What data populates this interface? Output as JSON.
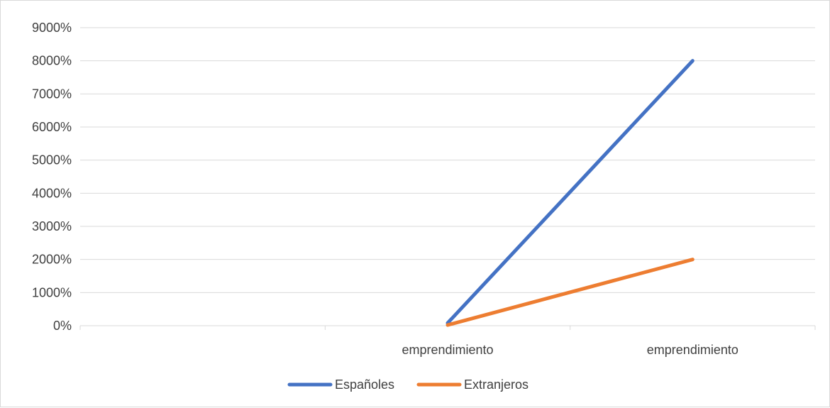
{
  "chart_data": {
    "type": "line",
    "title": "",
    "xlabel": "",
    "ylabel": "",
    "categories": [
      "",
      "emprendimiento",
      "emprendimiento"
    ],
    "ylim": [
      0,
      9000
    ],
    "y_ticks": [
      "0%",
      "1000%",
      "2000%",
      "3000%",
      "4000%",
      "5000%",
      "6000%",
      "7000%",
      "8000%",
      "9000%"
    ],
    "grid": true,
    "legend_position": "bottom",
    "series": [
      {
        "name": "Españoles",
        "color": "#4472c4",
        "values": [
          null,
          80,
          8000
        ]
      },
      {
        "name": "Extranjeros",
        "color": "#ed7d31",
        "values": [
          null,
          20,
          2000
        ]
      }
    ]
  }
}
